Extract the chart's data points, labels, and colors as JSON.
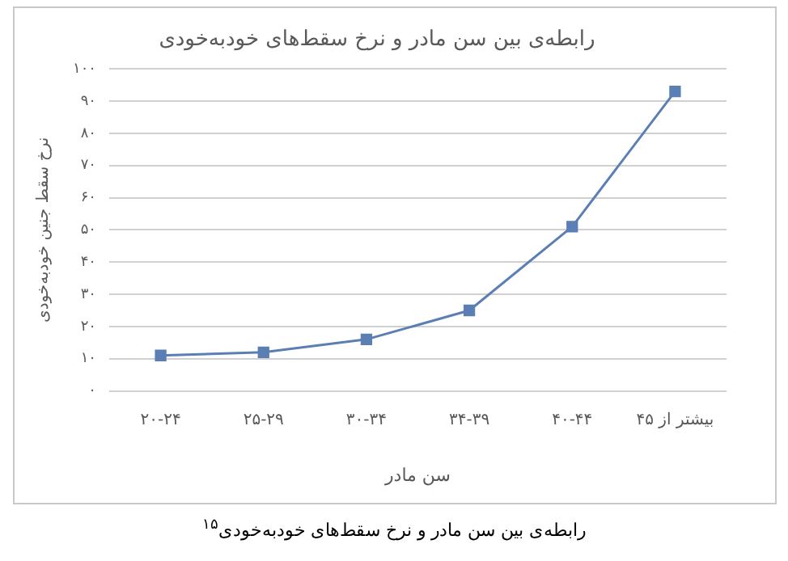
{
  "chart_data": {
    "type": "line",
    "title": "رابطه‌ی بین سن مادر و نرخ سقط‌های خودبه‌خودی",
    "xlabel": "سن مادر",
    "ylabel": "نرخ سقط جنین خودبه‌خودی",
    "categories": [
      "۲۰-۲۴",
      "۲۵-۲۹",
      "۳۰-۳۴",
      "۳۴-۳۹",
      "۴۰-۴۴",
      "بیشتر از ۴۵"
    ],
    "series": [
      {
        "color": "#5b7fb5",
        "values": [
          11,
          12,
          16,
          25,
          51,
          93
        ]
      }
    ],
    "ylim": [
      0,
      100
    ],
    "yticks": [
      {
        "value": 0,
        "label": "۰"
      },
      {
        "value": 10,
        "label": "۱۰"
      },
      {
        "value": 20,
        "label": "۲۰"
      },
      {
        "value": 30,
        "label": "۳۰"
      },
      {
        "value": 40,
        "label": "۴۰"
      },
      {
        "value": 50,
        "label": "۵۰"
      },
      {
        "value": 60,
        "label": "۶۰"
      },
      {
        "value": 70,
        "label": "۷۰"
      },
      {
        "value": 80,
        "label": "۸۰"
      },
      {
        "value": 90,
        "label": "۹۰"
      },
      {
        "value": 100,
        "label": "۱۰۰"
      }
    ],
    "grid": "y",
    "legend": false,
    "marker": "square",
    "line_style": "solid",
    "annotations": [
      "رابطه‌ی بین سن مادر و نرخ سقط‌های خودبه‌خودی$^{۱۵}$"
    ]
  }
}
